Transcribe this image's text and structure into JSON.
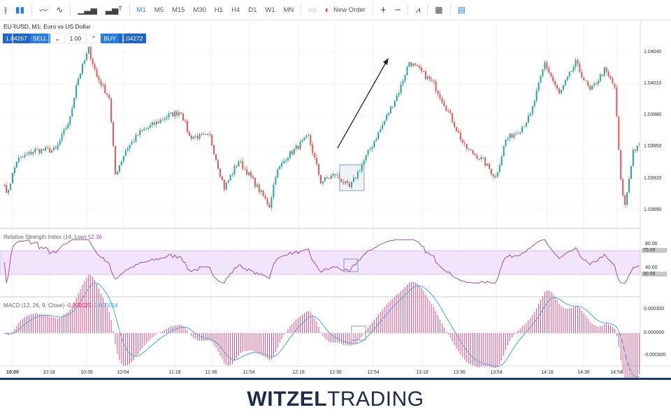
{
  "toolbar": {
    "chart_types": [
      "bars-icon",
      "candles-icon",
      "line-icon",
      "area-icon",
      "volume-icon",
      "indicators-icon"
    ],
    "timeframes": [
      "M1",
      "M5",
      "M15",
      "M30",
      "H1",
      "H4",
      "D1",
      "W1",
      "MN"
    ],
    "active_timeframe": "M1",
    "new_order_label": "New Order",
    "right_icons": [
      "zoom-in-icon",
      "zoom-out-icon",
      "indicator-icon",
      "calendar-icon",
      "document-icon"
    ]
  },
  "symbol": {
    "title": "EURUSD, M1: Euro vs US Dollar",
    "sell_price": "1.04267",
    "sell_label": "SELL",
    "lot": "1.00",
    "buy_label": "BUY",
    "buy_price": "1.04272"
  },
  "colors": {
    "up": "#26a69a",
    "down": "#ef5350",
    "rsi": "#a64ca6",
    "rsi_band": "#f1e4fb",
    "macd": "#42a5f5",
    "hist": "#e91e63",
    "accent": "#2a7de1"
  },
  "price_axis": [
    "1.04040",
    "1.04010",
    "1.03980",
    "1.03950",
    "1.03920",
    "1.03890"
  ],
  "rsi": {
    "title": "Relative Strength Index (14, Low)",
    "value": "52.36",
    "axis": [
      "80.00",
      "70.00",
      "40.00",
      "30.00"
    ]
  },
  "macd": {
    "title": "MACD (12, 26, 9, Close)",
    "macd_value": "-0.000025",
    "signal_value": "-0.000016",
    "axis": [
      "0.000300",
      "0.000000",
      "-0.000300"
    ]
  },
  "time_axis": [
    "10:00",
    "10:18",
    "10:36",
    "10:54",
    "11:18",
    "11:36",
    "11:54",
    "12:18",
    "12:36",
    "12:54",
    "13:18",
    "13:36",
    "13:54",
    "14:18",
    "14:36",
    "14:54"
  ],
  "chart_data": {
    "type": "candlestick",
    "price_path": [
      [
        "09:56",
        1.03917
      ],
      [
        "09:57",
        1.03904
      ],
      [
        "10:02",
        1.03937
      ],
      [
        "10:11",
        1.03947
      ],
      [
        "10:21",
        1.03947
      ],
      [
        "10:28",
        1.03977
      ],
      [
        "10:31",
        1.0401
      ],
      [
        "10:37",
        1.04043
      ],
      [
        "10:41",
        1.04017
      ],
      [
        "10:47",
        1.03997
      ],
      [
        "10:50",
        1.03924
      ],
      [
        "10:55",
        1.03947
      ],
      [
        "11:02",
        1.03964
      ],
      [
        "11:16",
        1.0398
      ],
      [
        "11:22",
        1.03984
      ],
      [
        "11:26",
        1.0396
      ],
      [
        "11:36",
        1.0396
      ],
      [
        "11:43",
        1.03911
      ],
      [
        "11:50",
        1.03937
      ],
      [
        "11:56",
        1.03921
      ],
      [
        "12:05",
        1.03894
      ],
      [
        "12:08",
        1.03924
      ],
      [
        "12:13",
        1.0394
      ],
      [
        "12:24",
        1.0396
      ],
      [
        "12:30",
        1.03917
      ],
      [
        "12:37",
        1.03924
      ],
      [
        "12:44",
        1.03911
      ],
      [
        "12:51",
        1.03937
      ],
      [
        "12:59",
        1.03967
      ],
      [
        "13:08",
        1.04003
      ],
      [
        "13:13",
        1.04031
      ],
      [
        "13:18",
        1.04023
      ],
      [
        "13:25",
        1.0401
      ],
      [
        "13:32",
        1.03984
      ],
      [
        "13:40",
        1.0395
      ],
      [
        "13:49",
        1.03937
      ],
      [
        "13:55",
        1.03921
      ],
      [
        "14:00",
        1.03957
      ],
      [
        "14:07",
        1.03967
      ],
      [
        "14:12",
        1.0398
      ],
      [
        "14:19",
        1.0403
      ],
      [
        "14:26",
        1.04
      ],
      [
        "14:34",
        1.0403
      ],
      [
        "14:41",
        1.04003
      ],
      [
        "14:48",
        1.04023
      ],
      [
        "14:53",
        1.04007
      ],
      [
        "14:56",
        1.03917
      ],
      [
        "14:58",
        1.03894
      ],
      [
        "15:02",
        1.03947
      ],
      [
        "15:05",
        1.0395
      ]
    ],
    "ylim": [
      1.0387,
      1.0406
    ],
    "annotations": [
      "up-arrow 12:36→13:08",
      "highlight box ~12:38-12:50"
    ]
  },
  "footer": {
    "logo_bold": "WITZEL",
    "logo_light": "TRADING"
  }
}
